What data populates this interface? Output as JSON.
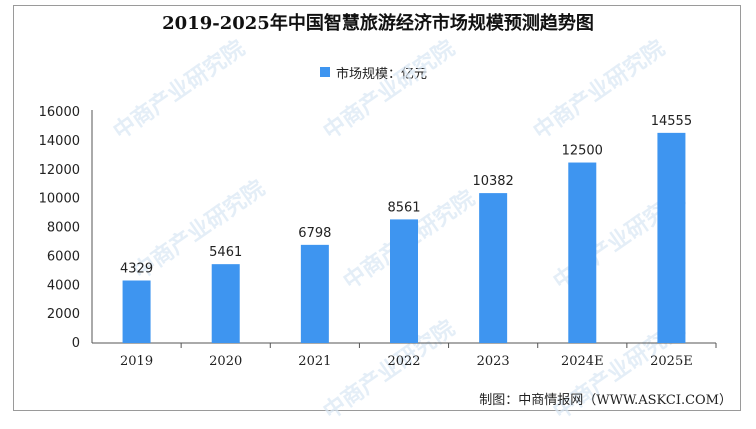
{
  "title": "2019-2025年中国智慧旅游经济市场规模预测趋势图",
  "source": "制图：中商情报网（WWW.ASKCI.COM）",
  "watermark": "中商产业研究院",
  "colors": {
    "bar": "#3e95f0",
    "axis": "#555555",
    "grid": "#d8d8d8"
  },
  "chart_data": {
    "type": "bar",
    "title": "2019-2025年中国智慧旅游经济市场规模预测趋势图",
    "categories": [
      "2019",
      "2020",
      "2021",
      "2022",
      "2023",
      "2024E",
      "2025E"
    ],
    "series": [
      {
        "name": "市场规模：亿元",
        "values": [
          4329,
          5461,
          6798,
          8561,
          10382,
          12500,
          14555
        ]
      }
    ],
    "data_labels": [
      "4329",
      "5461",
      "6798",
      "8561",
      "10382",
      "12500",
      "14555"
    ],
    "yticks": [
      "0",
      "2000",
      "4000",
      "6000",
      "8000",
      "10000",
      "12000",
      "14000",
      "16000"
    ],
    "ylim": [
      0,
      16000
    ],
    "grid": false,
    "legend_position": "top-center"
  }
}
